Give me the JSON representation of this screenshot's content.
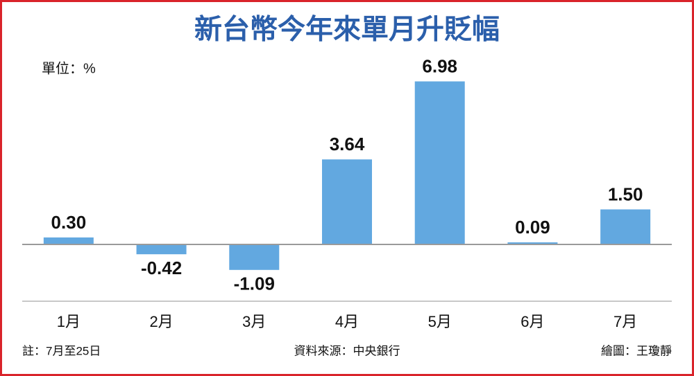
{
  "chart_data": {
    "type": "bar",
    "title": "新台幣今年來單月升貶幅",
    "unit": "單位：%",
    "categories": [
      "1月",
      "2月",
      "3月",
      "4月",
      "5月",
      "6月",
      "7月"
    ],
    "values": [
      0.3,
      -0.42,
      -1.09,
      3.64,
      6.98,
      0.09,
      1.5
    ],
    "value_labels": [
      "0.30",
      "-0.42",
      "-1.09",
      "3.64",
      "6.98",
      "0.09",
      "1.50"
    ],
    "color": "#62a8e0",
    "ylim": [
      -2.4,
      7.5
    ],
    "note": "註：7月至25日",
    "source": "資料來源：中央銀行",
    "credit": "繪圖：王瓊靜"
  }
}
